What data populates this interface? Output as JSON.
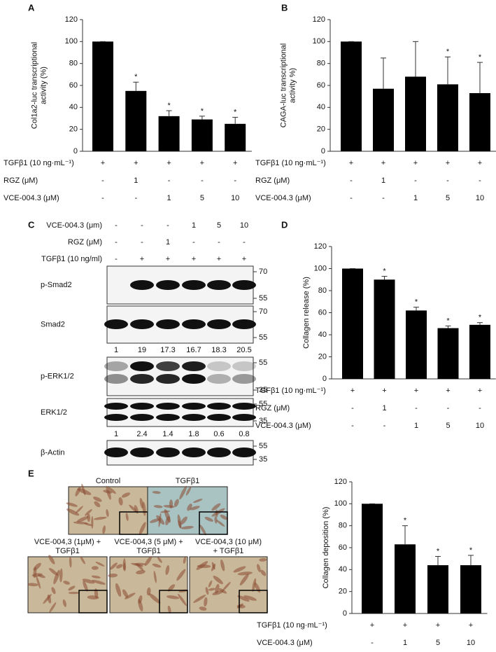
{
  "chart_data": [
    {
      "type": "bar",
      "panel": "A",
      "y_label": [
        "Col1a2-luc transcriptional",
        "activity (%)"
      ],
      "color": "#000000",
      "values": [
        100,
        55,
        32,
        29,
        25
      ],
      "errors": [
        0,
        8,
        5,
        3,
        6
      ],
      "annotations": [
        null,
        "*",
        "*",
        "*",
        "*"
      ],
      "ylim": [
        0,
        120
      ],
      "yticks": [
        0,
        20,
        40,
        60,
        80,
        100,
        120
      ],
      "treatments": [
        {
          "name": "TGFβ1 (10 ng·mL⁻¹)",
          "values": [
            "+",
            "+",
            "+",
            "+",
            "+"
          ]
        },
        {
          "name": "RGZ (μM)",
          "values": [
            "-",
            "1",
            "-",
            "-",
            "-"
          ]
        },
        {
          "name": "VCE-004.3 (μM)",
          "values": [
            "-",
            "-",
            "1",
            "5",
            "10"
          ]
        }
      ]
    },
    {
      "type": "bar",
      "panel": "B",
      "y_label": [
        "CAGA-luc transcriptional",
        "activity %)"
      ],
      "color": "#000000",
      "values": [
        100,
        57,
        68,
        61,
        53
      ],
      "errors": [
        0,
        28,
        32,
        25,
        28
      ],
      "annotations": [
        null,
        null,
        null,
        "*",
        "*"
      ],
      "ylim": [
        0,
        120
      ],
      "yticks": [
        0,
        20,
        40,
        60,
        80,
        100,
        120
      ],
      "treatments": [
        {
          "name": "TGFβ1 (10 ng·mL⁻¹)",
          "values": [
            "+",
            "+",
            "+",
            "+",
            "+"
          ]
        },
        {
          "name": "RGZ (μM)",
          "values": [
            "-",
            "1",
            "-",
            "-",
            "-"
          ]
        },
        {
          "name": "VCE-004.3 (μM)",
          "values": [
            "-",
            "-",
            "1",
            "5",
            "10"
          ]
        }
      ]
    },
    {
      "type": "bar",
      "panel": "D",
      "y_label": [
        "Collagen release (%)"
      ],
      "color": "#000000",
      "values": [
        100,
        90,
        62,
        46,
        49
      ],
      "errors": [
        0,
        3,
        3,
        2,
        2
      ],
      "annotations": [
        null,
        "*",
        "*",
        "*",
        "*"
      ],
      "ylim": [
        0,
        120
      ],
      "yticks": [
        0,
        20,
        40,
        60,
        80,
        100,
        120
      ],
      "treatments": [
        {
          "name": "TGFβ1 (10 ng·mL⁻¹)",
          "values": [
            "+",
            "+",
            "+",
            "+",
            "+"
          ]
        },
        {
          "name": "RGZ (μM)",
          "values": [
            "-",
            "1",
            "-",
            "-",
            "-"
          ]
        },
        {
          "name": "VCE-004.3 (μM)",
          "values": [
            "-",
            "-",
            "1",
            "5",
            "10"
          ]
        }
      ]
    },
    {
      "type": "bar",
      "y_label": [
        "Collagen deposition (%)"
      ],
      "color": "#000000",
      "values": [
        100,
        63,
        44,
        44
      ],
      "errors": [
        0,
        17,
        8,
        9
      ],
      "annotations": [
        null,
        "*",
        "*",
        "*"
      ],
      "ylim": [
        0,
        120
      ],
      "yticks": [
        0,
        20,
        40,
        60,
        80,
        100,
        120
      ],
      "treatments": [
        {
          "name": "TGFβ1 (10 ng·mL⁻¹)",
          "values": [
            "+",
            "+",
            "+",
            "+"
          ]
        },
        {
          "name": "VCE-004.3 (μM)",
          "values": [
            "-",
            "1",
            "5",
            "10"
          ]
        }
      ]
    }
  ],
  "blot": {
    "panel": "C",
    "treatments": [
      {
        "name": "VCE-004.3 (μm)",
        "values": [
          "-",
          "-",
          "-",
          "1",
          "5",
          "10"
        ]
      },
      {
        "name": "RGZ (μM)",
        "values": [
          "-",
          "-",
          "1",
          "-",
          "-",
          "-"
        ]
      },
      {
        "name": "TGFβ1 (10 ng/ml)",
        "values": [
          "-",
          "+",
          "+",
          "+",
          "+",
          "+"
        ]
      }
    ],
    "bands": [
      {
        "name": "p-Smad2",
        "markers": [
          70,
          55
        ]
      },
      {
        "name": "Smad2",
        "markers": [
          70,
          55
        ]
      },
      {
        "name": "p-ERK1/2",
        "markers": [
          55,
          35
        ]
      },
      {
        "name": "ERK1/2",
        "markers": [
          55,
          35
        ]
      },
      {
        "name": "β-Actin",
        "markers": [
          55,
          35
        ]
      }
    ],
    "smad2_quantification": [
      1,
      19,
      17.3,
      16.7,
      18.3,
      20.5
    ],
    "erk_quantification": [
      1,
      2.4,
      1.4,
      1.8,
      0.6,
      0.8
    ]
  },
  "micrographs": {
    "panel": "E",
    "images": [
      {
        "label": [
          "Control"
        ]
      },
      {
        "label": [
          "TGFβ1"
        ]
      },
      {
        "label": [
          "VCE-004,3 (1μM) +",
          "TGFβ1"
        ]
      },
      {
        "label": [
          "VCE-004,3 (5 μM) +",
          "TGFβ1"
        ]
      },
      {
        "label": [
          "VCE-004,3 (10 μM)",
          "+ TGFβ1"
        ]
      }
    ]
  }
}
